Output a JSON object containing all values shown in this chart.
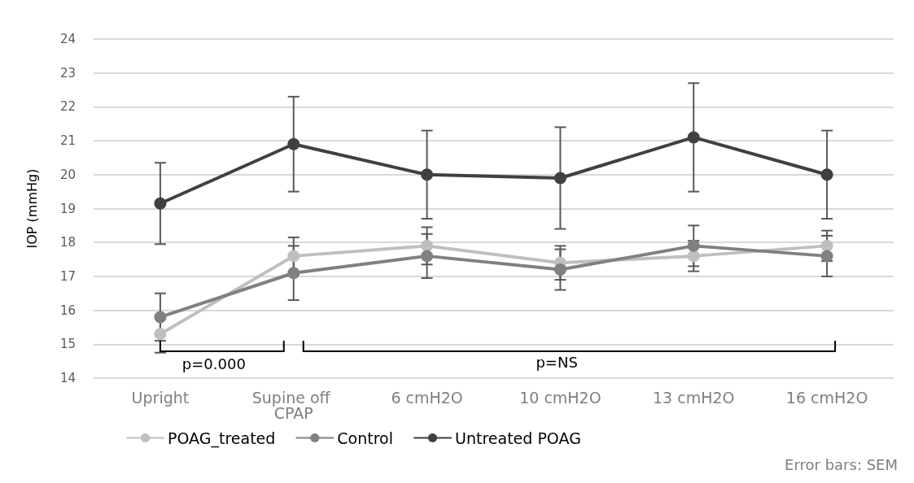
{
  "chart_data": {
    "type": "line",
    "ylabel": "IOP (mmHg)",
    "categories": [
      "Upright",
      "Supine off CPAP",
      "6 cmH2O",
      "10 cmH2O",
      "13 cmH2O",
      "16 cmH2O"
    ],
    "ylim": [
      14,
      24
    ],
    "yticks": [
      14,
      15,
      16,
      17,
      18,
      19,
      20,
      21,
      22,
      23,
      24
    ],
    "grid": "y",
    "legend": "bottom left",
    "marker": "circle",
    "line_style": "solid",
    "series": [
      {
        "name": "POAG_treated",
        "color": "#bfbfbf",
        "values": [
          15.3,
          17.6,
          17.9,
          17.4,
          17.6,
          17.9
        ],
        "errors": [
          0.55,
          0.55,
          0.55,
          0.5,
          0.45,
          0.45
        ]
      },
      {
        "name": "Control",
        "color": "#808080",
        "values": [
          15.8,
          17.1,
          17.6,
          17.2,
          17.9,
          17.6
        ],
        "errors": [
          0.7,
          0.8,
          0.65,
          0.6,
          0.6,
          0.6
        ]
      },
      {
        "name": "Untreated POAG",
        "color": "#404040",
        "values": [
          19.15,
          20.9,
          20.0,
          19.9,
          21.1,
          20.0
        ],
        "errors": [
          1.2,
          1.4,
          1.3,
          1.5,
          1.6,
          1.3
        ]
      }
    ],
    "annotations": [
      "p=0.000",
      "p=NS",
      "Error bars: SEM"
    ]
  }
}
